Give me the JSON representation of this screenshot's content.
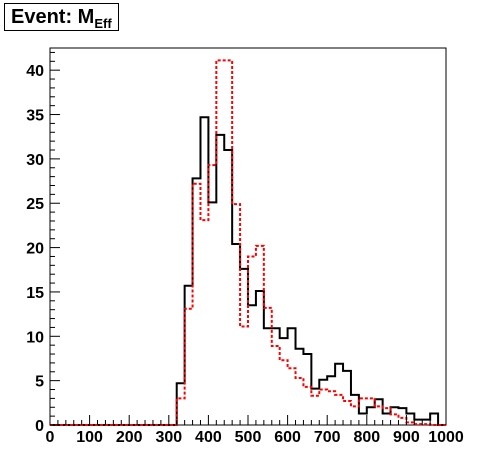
{
  "title": {
    "main": "Event: M",
    "sub": "Eff"
  },
  "chart_data": {
    "type": "step-histogram",
    "xlim": [
      0,
      1000
    ],
    "ylim": [
      0,
      42.5
    ],
    "bin_width": 20,
    "x_ticks": [
      0,
      100,
      200,
      300,
      400,
      500,
      600,
      700,
      800,
      900,
      1000
    ],
    "y_ticks": [
      0,
      5,
      10,
      15,
      20,
      25,
      30,
      35,
      40
    ],
    "bin_edges_start": [
      0,
      20,
      40,
      60,
      80,
      100,
      120,
      140,
      160,
      180,
      200,
      220,
      240,
      260,
      280,
      300,
      320,
      340,
      360,
      380,
      400,
      420,
      440,
      460,
      480,
      500,
      520,
      540,
      560,
      580,
      600,
      620,
      640,
      660,
      680,
      700,
      720,
      740,
      760,
      780,
      800,
      820,
      840,
      860,
      880,
      900,
      920,
      940,
      960,
      980
    ],
    "series": [
      {
        "color": "#000000",
        "style": "solid",
        "values": [
          0,
          0,
          0,
          0,
          0,
          0,
          0,
          0,
          0,
          0,
          0,
          0,
          0,
          0,
          0,
          0,
          4.7,
          15.7,
          27.8,
          34.7,
          25.1,
          32.7,
          31.0,
          20.4,
          17.6,
          13.5,
          15.1,
          10.9,
          10.9,
          9.8,
          10.9,
          8.6,
          8.0,
          4.1,
          5.1,
          5.5,
          6.9,
          6.1,
          3.4,
          1.3,
          2.0,
          2.9,
          1.3,
          2.0,
          1.9,
          1.3,
          0.6,
          0.6,
          1.3,
          0
        ]
      },
      {
        "color": "#ff0000",
        "style": "dashed",
        "values": [
          0,
          0,
          0,
          0,
          0,
          0,
          0,
          0,
          0,
          0,
          0,
          0,
          0,
          0,
          0,
          0,
          3.0,
          13.1,
          27.2,
          23.1,
          29.3,
          41.1,
          41.1,
          24.9,
          11.1,
          19.0,
          20.2,
          13.2,
          8.9,
          7.3,
          6.4,
          5.3,
          4.3,
          3.3,
          4.0,
          3.8,
          3.4,
          2.7,
          2.1,
          3.0,
          3.0,
          2.1,
          1.9,
          1.2,
          0.8,
          0.3,
          0.1,
          0.1,
          0,
          0
        ]
      }
    ]
  }
}
